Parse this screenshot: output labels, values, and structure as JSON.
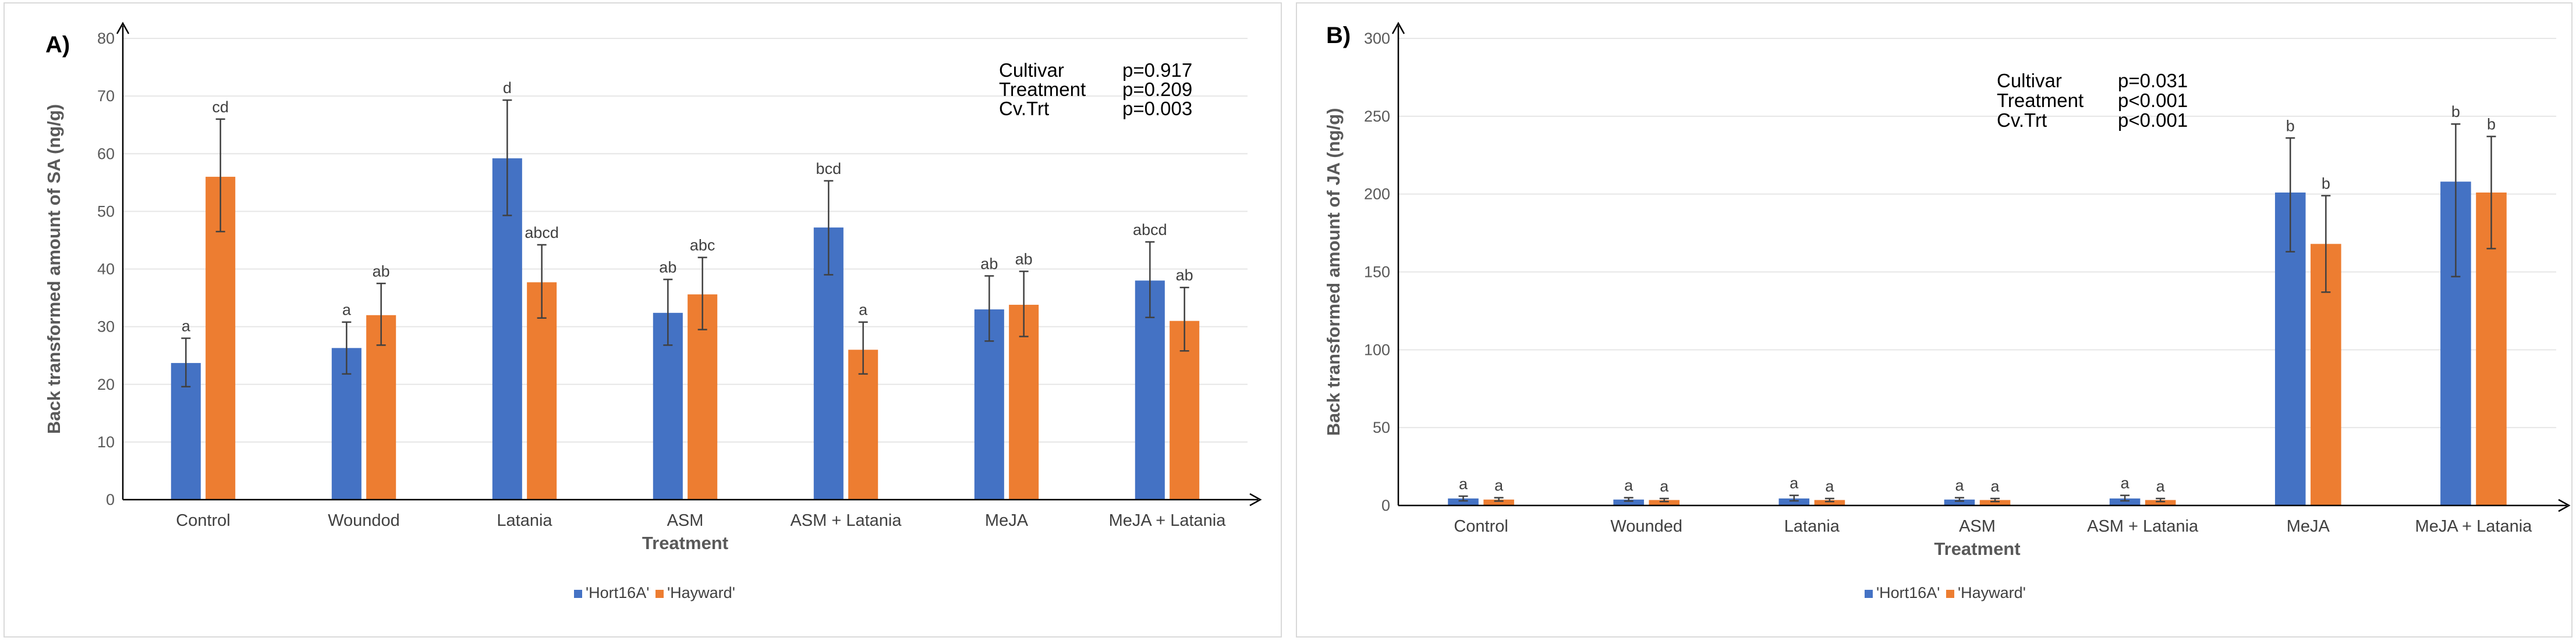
{
  "colors": {
    "hort": "#4472C4",
    "hayward": "#ED7D31",
    "axis": "#000000",
    "error": "#404040"
  },
  "chart_data": [
    {
      "type": "bar",
      "panel_label": "A)",
      "title": "",
      "xlabel": "Treatment",
      "ylabel": "Back transformed amount of SA (ng/g)",
      "ylim": [
        0,
        80
      ],
      "yticks": [
        0,
        10,
        20,
        30,
        40,
        50,
        60,
        70,
        80
      ],
      "categories": [
        "Control",
        "Woundod",
        "Latania",
        "ASM",
        "ASM + Latania",
        "MeJA",
        "MeJA + Latania"
      ],
      "series": [
        {
          "name": "'Hort16A'",
          "color": "#4472C4",
          "values": [
            23.7,
            26.3,
            59.2,
            32.4,
            47.2,
            33.0,
            38.0
          ],
          "err_high": [
            28.0,
            30.8,
            69.3,
            38.2,
            55.3,
            38.8,
            44.7
          ],
          "err_low": [
            19.6,
            21.8,
            49.3,
            26.8,
            39.0,
            27.5,
            31.6
          ],
          "labels": [
            "a",
            "a",
            "d",
            "ab",
            "bcd",
            "ab",
            "abcd"
          ]
        },
        {
          "name": "'Hayward'",
          "color": "#ED7D31",
          "values": [
            56.0,
            32.0,
            37.7,
            35.6,
            26.0,
            33.8,
            31.0
          ],
          "err_high": [
            66.0,
            37.5,
            44.2,
            42.0,
            30.8,
            39.6,
            36.8
          ],
          "err_low": [
            46.5,
            26.8,
            31.5,
            29.5,
            21.8,
            28.3,
            25.8
          ],
          "labels": [
            "cd",
            "ab",
            "abcd",
            "abc",
            "a",
            "ab",
            "ab"
          ]
        }
      ],
      "stats": [
        {
          "term": "Cultivar",
          "p": "p=0.917"
        },
        {
          "term": "Treatment",
          "p": "p=0.209"
        },
        {
          "term": "Cv.Trt",
          "p": "p=0.003"
        }
      ],
      "legend_position": "bottom-center"
    },
    {
      "type": "bar",
      "panel_label": "B)",
      "title": "",
      "xlabel": "Treatment",
      "ylabel": "Back transformed amount of JA (ng/g)",
      "ylim": [
        0,
        300
      ],
      "yticks": [
        0,
        50,
        100,
        150,
        200,
        250,
        300
      ],
      "categories": [
        "Control",
        "Wounded",
        "Latania",
        "ASM",
        "ASM + Latania",
        "MeJA",
        "MeJA + Latania"
      ],
      "series": [
        {
          "name": "'Hort16A'",
          "color": "#4472C4",
          "values": [
            4.5,
            3.8,
            4.5,
            3.8,
            4.5,
            201.0,
            208.0
          ],
          "err_high": [
            6.0,
            5.0,
            6.5,
            5.0,
            6.5,
            236.0,
            245.0
          ],
          "err_low": [
            3.0,
            2.8,
            3.0,
            2.8,
            3.0,
            163.0,
            147.0
          ],
          "labels": [
            "a",
            "a",
            "a",
            "a",
            "a",
            "b",
            "b"
          ]
        },
        {
          "name": "'Hayward'",
          "color": "#ED7D31",
          "values": [
            3.8,
            3.5,
            3.5,
            3.5,
            3.5,
            168.0,
            201.0
          ],
          "err_high": [
            5.0,
            4.5,
            4.5,
            4.5,
            4.5,
            199.0,
            237.0
          ],
          "err_low": [
            2.8,
            2.5,
            2.5,
            2.5,
            2.5,
            137.0,
            165.0
          ],
          "labels": [
            "a",
            "a",
            "a",
            "a",
            "a",
            "b",
            "b"
          ]
        }
      ],
      "stats": [
        {
          "term": "Cultivar",
          "p": "p=0.031"
        },
        {
          "term": "Treatment",
          "p": "p<0.001"
        },
        {
          "term": "Cv.Trt",
          "p": "p<0.001"
        }
      ],
      "legend_position": "bottom-center"
    }
  ]
}
